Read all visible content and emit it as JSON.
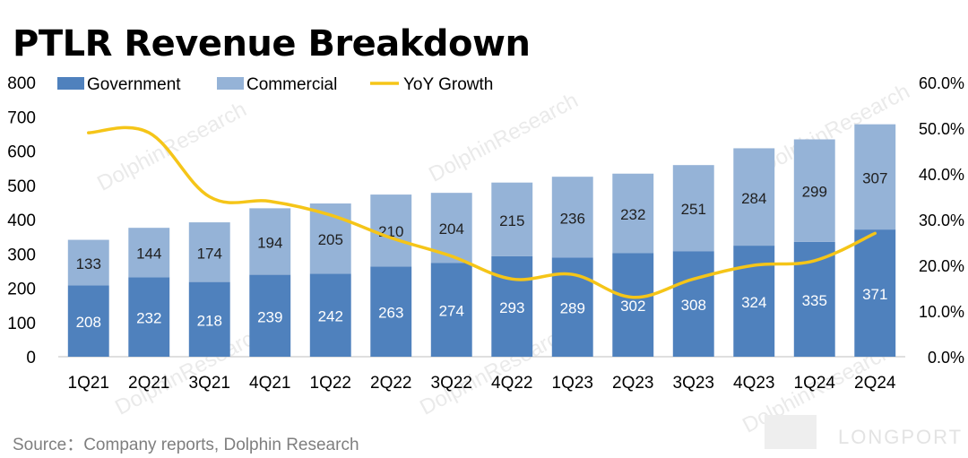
{
  "title": "PTLR Revenue Breakdown",
  "source": "Source：Company reports, Dolphin Research",
  "brand": "LONGPORT",
  "watermark": "DolphinResearch",
  "colors": {
    "government": "#4f81bd",
    "commercial": "#95b3d7",
    "growth": "#f5c518",
    "bar_label_gov": "#ffffff",
    "bar_label_com": "#1f1f1f"
  },
  "chart_data": {
    "type": "bar",
    "stacked": true,
    "categories": [
      "1Q21",
      "2Q21",
      "3Q21",
      "4Q21",
      "1Q22",
      "2Q22",
      "3Q22",
      "4Q22",
      "1Q23",
      "2Q23",
      "3Q23",
      "4Q23",
      "1Q24",
      "2Q24"
    ],
    "series": [
      {
        "name": "Government",
        "type": "bar",
        "values": [
          208,
          232,
          218,
          239,
          242,
          263,
          274,
          293,
          289,
          302,
          308,
          324,
          335,
          371
        ]
      },
      {
        "name": "Commercial",
        "type": "bar",
        "values": [
          133,
          144,
          174,
          194,
          205,
          210,
          204,
          215,
          236,
          232,
          251,
          284,
          299,
          307
        ]
      },
      {
        "name": "YoY Growth",
        "type": "line",
        "axis": "right",
        "values": [
          49.0,
          49.0,
          35.0,
          34.0,
          31.0,
          26.0,
          22.0,
          17.0,
          18.0,
          13.0,
          17.0,
          20.0,
          21.0,
          27.0
        ]
      }
    ],
    "y_left": {
      "min": 0,
      "max": 800,
      "ticks": [
        "0",
        "100",
        "200",
        "300",
        "400",
        "500",
        "600",
        "700",
        "800"
      ]
    },
    "y_right": {
      "min": 0,
      "max": 60,
      "ticks": [
        "0.0%",
        "10.0%",
        "20.0%",
        "30.0%",
        "40.0%",
        "50.0%",
        "60.0%"
      ]
    },
    "legend": [
      "Government",
      "Commercial",
      "YoY Growth"
    ],
    "legend_position": "top-left",
    "grid": false
  }
}
